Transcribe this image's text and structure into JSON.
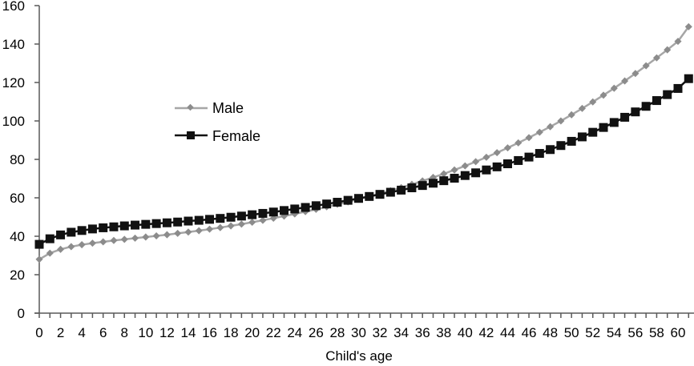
{
  "chart_data": {
    "type": "line",
    "title": "",
    "xlabel": "Child's age",
    "ylabel": "",
    "ylim": [
      0,
      160
    ],
    "xlim": [
      0,
      61
    ],
    "y_ticks": [
      0,
      20,
      40,
      60,
      80,
      100,
      120,
      140,
      160
    ],
    "x_tick_labels": [
      0,
      2,
      4,
      6,
      8,
      10,
      12,
      14,
      16,
      18,
      20,
      22,
      24,
      26,
      28,
      30,
      32,
      34,
      36,
      38,
      40,
      42,
      44,
      46,
      48,
      50,
      52,
      54,
      56,
      58,
      60
    ],
    "grid": false,
    "legend_position": "upper-left-inside",
    "x": [
      0,
      1,
      2,
      3,
      4,
      5,
      6,
      7,
      8,
      9,
      10,
      11,
      12,
      13,
      14,
      15,
      16,
      17,
      18,
      19,
      20,
      21,
      22,
      23,
      24,
      25,
      26,
      27,
      28,
      29,
      30,
      31,
      32,
      33,
      34,
      35,
      36,
      37,
      38,
      39,
      40,
      41,
      42,
      43,
      44,
      45,
      46,
      47,
      48,
      49,
      50,
      51,
      52,
      53,
      54,
      55,
      56,
      57,
      58,
      59,
      60,
      61
    ],
    "series": [
      {
        "name": "Male",
        "color": "#8c8c8c",
        "marker": "diamond",
        "values": [
          28.0,
          31.2,
          33.2,
          34.6,
          35.6,
          36.4,
          37.1,
          37.8,
          38.4,
          39.0,
          39.6,
          40.2,
          40.8,
          41.5,
          42.2,
          42.9,
          43.7,
          44.5,
          45.4,
          46.3,
          47.3,
          48.3,
          49.4,
          50.5,
          51.6,
          52.8,
          54.0,
          55.3,
          56.6,
          57.9,
          59.3,
          60.7,
          62.2,
          63.7,
          65.3,
          67.0,
          68.8,
          70.6,
          72.5,
          74.5,
          76.6,
          78.8,
          81.1,
          83.5,
          86.0,
          88.6,
          91.3,
          94.1,
          97.0,
          100.0,
          103.2,
          106.5,
          109.9,
          113.4,
          117.0,
          120.8,
          124.7,
          128.7,
          132.8,
          137.0,
          141.4,
          149.0
        ]
      },
      {
        "name": "Female",
        "color": "#111111",
        "marker": "square",
        "values": [
          35.8,
          38.7,
          40.7,
          42.1,
          43.0,
          43.8,
          44.4,
          44.9,
          45.4,
          45.8,
          46.2,
          46.6,
          47.0,
          47.4,
          47.9,
          48.3,
          48.8,
          49.3,
          49.9,
          50.5,
          51.2,
          51.9,
          52.6,
          53.4,
          54.2,
          55.0,
          55.9,
          56.8,
          57.7,
          58.7,
          59.7,
          60.7,
          61.8,
          62.9,
          64.0,
          65.2,
          66.4,
          67.6,
          68.9,
          70.2,
          71.6,
          73.0,
          74.5,
          76.1,
          77.7,
          79.4,
          81.2,
          83.1,
          85.1,
          87.2,
          89.4,
          91.7,
          94.1,
          96.6,
          99.2,
          101.9,
          104.7,
          107.6,
          110.6,
          113.7,
          116.9,
          122.0
        ]
      }
    ]
  },
  "legend": {
    "items": [
      {
        "label": "Male"
      },
      {
        "label": "Female"
      }
    ]
  },
  "axes": {
    "x_title": "Child's age"
  }
}
